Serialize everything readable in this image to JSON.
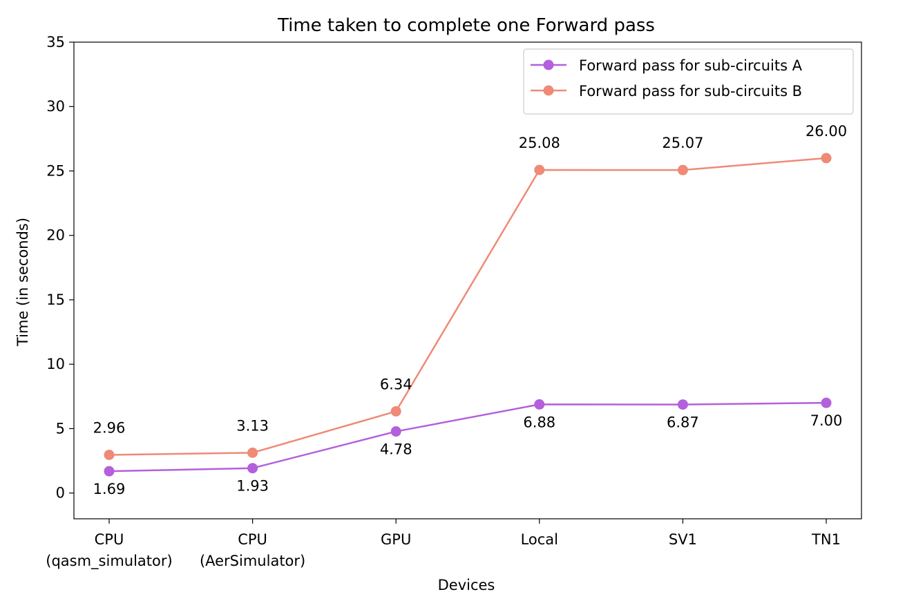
{
  "chart_data": {
    "type": "line",
    "title": "Time taken to complete one Forward pass",
    "xlabel": "Devices",
    "ylabel": "Time (in seconds)",
    "categories": [
      [
        "CPU",
        "(qasm_simulator)"
      ],
      [
        "CPU",
        "(AerSimulator)"
      ],
      [
        "GPU"
      ],
      [
        "Local"
      ],
      [
        "SV1"
      ],
      [
        "TN1"
      ]
    ],
    "ylim": [
      -2,
      35
    ],
    "yticks": [
      0,
      5,
      10,
      15,
      20,
      25,
      30,
      35
    ],
    "grid": false,
    "legend_position": "upper right",
    "series": [
      {
        "name": "Forward pass for sub-circuits A",
        "color": "#b45fdc",
        "values": [
          1.69,
          1.93,
          4.78,
          6.88,
          6.87,
          7.0
        ],
        "labels": [
          "1.69",
          "1.93",
          "4.78",
          "6.88",
          "6.87",
          "7.00"
        ],
        "label_position": "below"
      },
      {
        "name": "Forward pass for sub-circuits B",
        "color": "#ee8a76",
        "values": [
          2.96,
          3.13,
          6.34,
          25.08,
          25.07,
          26.0
        ],
        "labels": [
          "2.96",
          "3.13",
          "6.34",
          "25.08",
          "25.07",
          "26.00"
        ],
        "label_position": "above"
      }
    ]
  }
}
